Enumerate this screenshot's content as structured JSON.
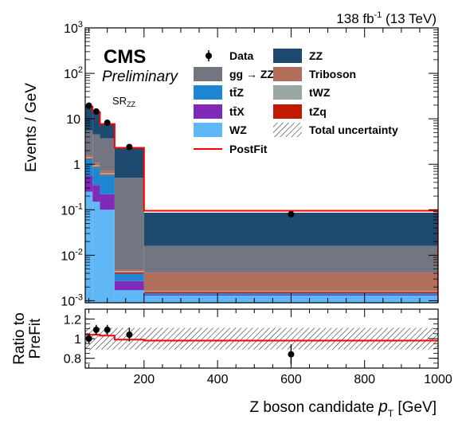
{
  "header": {
    "lumi_text": "138 fb",
    "lumi_exp": "-1",
    "energy_text": " (13 TeV)",
    "experiment": "CMS",
    "status": "Preliminary",
    "region_main": "SR",
    "region_sub": "ZZ"
  },
  "chart_data": [
    {
      "type": "bar",
      "subtype": "stacked-histogram",
      "xlabel_main": "Z boson candidate ",
      "xlabel_var": "p",
      "xlabel_sub": "T",
      "xlabel_unit": " [GeV]",
      "ylabel": "Events / GeV",
      "yscale": "log",
      "ylim": [
        0.0009,
        1000
      ],
      "xlim": [
        40,
        1000
      ],
      "y_ticks": [
        {
          "value": 0.001,
          "base": "10",
          "exp": "-3"
        },
        {
          "value": 0.01,
          "base": "10",
          "exp": "-2"
        },
        {
          "value": 0.1,
          "base": "10",
          "exp": "-1"
        },
        {
          "value": 1,
          "base": "1",
          "exp": ""
        },
        {
          "value": 10,
          "base": "10",
          "exp": ""
        },
        {
          "value": 100,
          "base": "10",
          "exp": "2"
        },
        {
          "value": 1000,
          "base": "10",
          "exp": "3"
        }
      ],
      "bin_edges": [
        40,
        60,
        80,
        120,
        200,
        1000
      ],
      "stack": [
        {
          "name": "WZ",
          "color": "#5fb8f5",
          "values": [
            0.25,
            0.15,
            0.1,
            0.0017,
            0.0013
          ]
        },
        {
          "name": "ttX",
          "color": "#7f2ab9",
          "values": [
            0.3,
            0.2,
            0.12,
            0.001,
            5e-05
          ]
        },
        {
          "name": "ttZ",
          "color": "#1f86d1",
          "values": [
            0.75,
            0.5,
            0.35,
            0.0012,
            0.0001
          ]
        },
        {
          "name": "tZq",
          "color": "#c11a00",
          "values": [
            0.05,
            0.03,
            0.02,
            0.0003,
            0.0001
          ]
        },
        {
          "name": "tWZ",
          "color": "#98a6a4",
          "values": [
            0.1,
            0.08,
            0.05,
            0.0003,
            0.0001
          ]
        },
        {
          "name": "Triboson",
          "color": "#b06e5b",
          "values": [
            0.15,
            0.1,
            0.08,
            0.0004,
            0.0025
          ]
        },
        {
          "name": "gg → ZZ",
          "color": "#737680",
          "values": [
            4.0,
            3.5,
            3.0,
            0.5,
            0.012
          ]
        },
        {
          "name": "ZZ",
          "color": "#1f4a6f",
          "values": [
            13.0,
            9.5,
            4.0,
            1.8,
            0.07
          ]
        }
      ],
      "postfit_values": [
        18.6,
        14.0,
        7.7,
        2.3,
        0.095
      ],
      "data_points": [
        {
          "x": 50,
          "y": 19.5,
          "err": 1.0
        },
        {
          "x": 70,
          "y": 14.5,
          "err": 0.9
        },
        {
          "x": 100,
          "y": 8.2,
          "err": 0.5
        },
        {
          "x": 160,
          "y": 2.4,
          "err": 0.18
        },
        {
          "x": 600,
          "y": 0.08,
          "err": 0.009
        }
      ],
      "legend": [
        {
          "label": "Data",
          "kind": "marker"
        },
        {
          "label": "ZZ",
          "kind": "box",
          "color": "#1f4a6f"
        },
        {
          "label": "gg → ZZ",
          "kind": "box",
          "color": "#737680"
        },
        {
          "label": "Triboson",
          "kind": "box",
          "color": "#b06e5b"
        },
        {
          "label": "tt̄Z",
          "kind": "box",
          "color": "#1f86d1"
        },
        {
          "label": "tWZ",
          "kind": "box",
          "color": "#98a6a4"
        },
        {
          "label": "tt̄X",
          "kind": "box",
          "color": "#7f2ab9"
        },
        {
          "label": "tZq",
          "kind": "box",
          "color": "#c11a00"
        },
        {
          "label": "WZ",
          "kind": "box",
          "color": "#5fb8f5"
        },
        {
          "label": "Total uncertainty",
          "kind": "hatch"
        },
        {
          "label": "PostFit",
          "kind": "line",
          "color": "#ff0000"
        }
      ],
      "legend_position": "top-right"
    },
    {
      "type": "scatter",
      "subtype": "ratio-panel",
      "ylabel_line1": "Ratio to",
      "ylabel_line2": "PreFit",
      "ylim": [
        0.7,
        1.3
      ],
      "xlim": [
        40,
        1000
      ],
      "y_ticks": [
        "0.8",
        "1",
        "1.2"
      ],
      "x_ticks": [
        "200",
        "400",
        "600",
        "800",
        "1000"
      ],
      "x_tick_values": [
        200,
        400,
        600,
        800,
        1000
      ],
      "y_tick_values": [
        0.8,
        1.0,
        1.2
      ],
      "postfit_ratio": [
        1.04,
        1.04,
        1.03,
        0.99,
        0.98
      ],
      "uncertainty_band": [
        0.12,
        0.11,
        0.11,
        0.11,
        0.11
      ],
      "data_points": [
        {
          "x": 50,
          "y": 1.0,
          "err": 0.05
        },
        {
          "x": 70,
          "y": 1.09,
          "err": 0.05
        },
        {
          "x": 100,
          "y": 1.09,
          "err": 0.05
        },
        {
          "x": 160,
          "y": 1.04,
          "err": 0.07
        },
        {
          "x": 600,
          "y": 0.84,
          "err": 0.1
        }
      ]
    }
  ]
}
